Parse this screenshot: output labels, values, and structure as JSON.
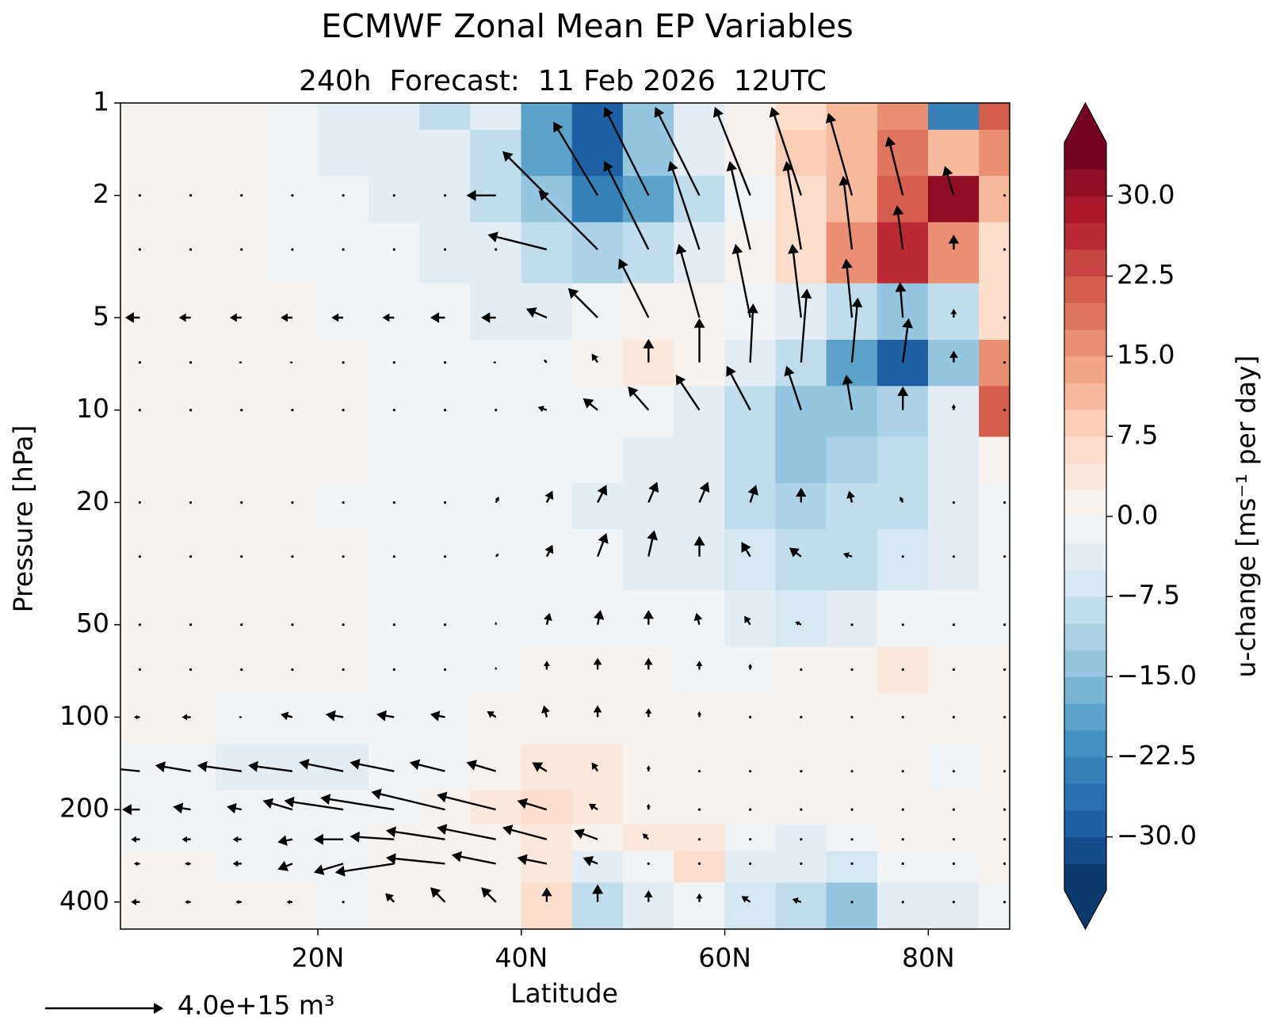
{
  "chart_data": {
    "type": "contour-quiver",
    "title": "ECMWF Zonal Mean EP Variables",
    "subtitle": "240h  Forecast:  11 Feb 2026  12UTC",
    "x_label": "Latitude",
    "y_label": "Pressure [hPa]",
    "xlim": [
      0.6,
      88
    ],
    "xticks": [
      {
        "value": 20,
        "label": "20N"
      },
      {
        "value": 40,
        "label": "40N"
      },
      {
        "value": 60,
        "label": "60N"
      },
      {
        "value": 80,
        "label": "80N"
      }
    ],
    "ylim": [
      1,
      490
    ],
    "y_log": true,
    "y_inverted": true,
    "yticks": [
      1,
      2,
      5,
      10,
      20,
      50,
      100,
      200,
      400
    ],
    "colormap": [
      "#053061",
      "#2166ac",
      "#4393c3",
      "#92c5de",
      "#d1e5f0",
      "#f7f7f7",
      "#fddbc7",
      "#f4a582",
      "#d6604d",
      "#b2182b",
      "#67001f"
    ],
    "colorbar": {
      "label": "u-change [ms⁻¹ per day]",
      "lim": [
        -35,
        35
      ],
      "bands": 28,
      "extend": "both",
      "ticks": [
        {
          "value": 30,
          "label": "30.0"
        },
        {
          "value": 22.5,
          "label": "22.5"
        },
        {
          "value": 15,
          "label": "15.0"
        },
        {
          "value": 7.5,
          "label": "7.5"
        },
        {
          "value": 0,
          "label": "0.0"
        },
        {
          "value": -7.5,
          "label": "−7.5"
        },
        {
          "value": -15,
          "label": "−15.0"
        },
        {
          "value": -22.5,
          "label": "−22.5"
        },
        {
          "value": -30,
          "label": "−30.0"
        }
      ]
    },
    "field": {
      "lats": [
        2.5,
        7.5,
        12.5,
        17.5,
        22.5,
        27.5,
        32.5,
        37.5,
        42.5,
        47.5,
        52.5,
        57.5,
        62.5,
        67.5,
        72.5,
        77.5,
        82.5,
        87.5
      ],
      "levels": [
        1,
        1.5,
        2,
        3,
        5,
        7,
        10,
        15,
        20,
        30,
        50,
        70,
        100,
        150,
        200,
        250,
        300,
        400
      ],
      "values": [
        [
          1,
          2,
          2,
          -1,
          -3,
          -3,
          -8,
          -5,
          -20,
          -30,
          -15,
          -5,
          0,
          5,
          12,
          15,
          -25,
          20
        ],
        [
          1,
          2,
          2,
          -2,
          -3,
          -4,
          -5,
          -10,
          -20,
          -28,
          -15,
          -5,
          2,
          8,
          12,
          18,
          10,
          15
        ],
        [
          0,
          1,
          1,
          -1,
          -2,
          -3,
          -5,
          -10,
          -15,
          -25,
          -20,
          -10,
          -2,
          5,
          12,
          22,
          30,
          10
        ],
        [
          0,
          0,
          0,
          -1,
          -2,
          -2,
          -3,
          -5,
          -8,
          -12,
          -10,
          -5,
          0,
          5,
          15,
          25,
          15,
          5
        ],
        [
          0,
          0,
          0,
          0,
          -1,
          -1,
          -2,
          -3,
          -3,
          -2,
          2,
          0,
          -2,
          -5,
          -10,
          -15,
          -10,
          5
        ],
        [
          0,
          0,
          0,
          1,
          0,
          -1,
          -1,
          -2,
          -2,
          0,
          3,
          2,
          -3,
          -10,
          -20,
          -28,
          -15,
          15
        ],
        [
          0,
          1,
          0,
          1,
          0,
          -1,
          -1,
          -2,
          -2,
          -2,
          -2,
          -3,
          -8,
          -15,
          -15,
          -12,
          -5,
          20
        ],
        [
          0,
          1,
          0,
          1,
          0,
          -1,
          -1,
          -2,
          -2,
          -2,
          -3,
          -5,
          -10,
          -15,
          -12,
          -10,
          -5,
          2
        ],
        [
          0,
          1,
          0,
          1,
          -1,
          -1,
          -2,
          -2,
          -2,
          -3,
          -4,
          -5,
          -8,
          -12,
          -10,
          -8,
          -4,
          -2
        ],
        [
          1,
          1,
          0,
          1,
          0,
          -1,
          -1,
          -2,
          -2,
          -2,
          -3,
          -4,
          -6,
          -10,
          -8,
          -6,
          -3,
          -2
        ],
        [
          1,
          1,
          0,
          1,
          0,
          -1,
          -1,
          -1,
          -1,
          -1,
          -2,
          -2,
          -4,
          -6,
          -4,
          -2,
          -1,
          -2
        ],
        [
          1,
          1,
          0,
          0,
          0,
          -1,
          -1,
          -1,
          0,
          0,
          0,
          -1,
          -1,
          0,
          2,
          3,
          1,
          2
        ],
        [
          0,
          0,
          -1,
          -2,
          -2,
          -1,
          -1,
          0,
          2,
          2,
          1,
          0,
          0,
          1,
          1,
          1,
          0,
          0
        ],
        [
          -1,
          -2,
          -3,
          -4,
          -3,
          -2,
          -1,
          0,
          3,
          4,
          2,
          1,
          0,
          0,
          0,
          0,
          -1,
          0
        ],
        [
          -1,
          -2,
          -2,
          -2,
          -2,
          -1,
          1,
          3,
          5,
          3,
          1,
          0,
          0,
          0,
          1,
          0,
          0,
          0
        ],
        [
          -1,
          -1,
          -1,
          -1,
          -1,
          0,
          1,
          2,
          4,
          2,
          4,
          3,
          -2,
          -3,
          -1,
          2,
          0,
          0
        ],
        [
          0,
          0,
          -1,
          -1,
          -1,
          0,
          1,
          2,
          3,
          -3,
          -2,
          6,
          -3,
          -5,
          -6,
          -2,
          -2,
          0
        ],
        [
          1,
          1,
          0,
          0,
          -1,
          0,
          1,
          2,
          7,
          -8,
          -5,
          -2,
          -7,
          -8,
          -15,
          -5,
          -3,
          -1
        ]
      ]
    },
    "quiver": {
      "lats": [
        2.5,
        7.5,
        12.5,
        17.5,
        22.5,
        27.5,
        32.5,
        37.5,
        42.5,
        47.5,
        52.5,
        57.5,
        62.5,
        67.5,
        72.5,
        77.5,
        82.5,
        87.5
      ],
      "levels": [
        2,
        3,
        5,
        7,
        10,
        20,
        30,
        50,
        70,
        100,
        150,
        200,
        250,
        300,
        400
      ],
      "u": [
        [
          0,
          0,
          0,
          0,
          0,
          0,
          0,
          -1000000000000000.0,
          -1500000000000000.0,
          -1500000000000000.0,
          -1500000000000000.0,
          -1500000000000000.0,
          -1200000000000000.0,
          -1000000000000000.0,
          -800000000000000.0,
          -500000000000000.0,
          -300000000000000.0,
          0
        ],
        [
          0,
          0,
          0,
          0,
          0,
          0,
          0,
          0,
          -2000000000000000.0,
          -2000000000000000.0,
          -1500000000000000.0,
          -1000000000000000.0,
          -700000000000000.0,
          -500000000000000.0,
          -300000000000000.0,
          -200000000000000.0,
          0,
          0
        ],
        [
          -500000000000000.0,
          -400000000000000.0,
          -400000000000000.0,
          -400000000000000.0,
          -400000000000000.0,
          -400000000000000.0,
          -500000000000000.0,
          -500000000000000.0,
          -700000000000000.0,
          -1000000000000000.0,
          -1000000000000000.0,
          -700000000000000.0,
          -500000000000000.0,
          -300000000000000.0,
          -200000000000000.0,
          -100000000000000.0,
          0,
          0
        ],
        [
          0,
          0,
          -100000000000000.0,
          -100000000000000.0,
          0,
          0,
          0,
          -100000000000000.0,
          -100000000000000.0,
          -200000000000000.0,
          0,
          0,
          100000000000000.0,
          200000000000000.0,
          200000000000000.0,
          200000000000000.0,
          0,
          0
        ],
        [
          0,
          0,
          0,
          0,
          0,
          0,
          0,
          0,
          -300000000000000.0,
          -500000000000000.0,
          -700000000000000.0,
          -800000000000000.0,
          -800000000000000.0,
          -500000000000000.0,
          -200000000000000.0,
          0,
          0,
          0
        ],
        [
          0,
          0,
          0,
          0,
          0,
          0,
          0,
          100000000000000.0,
          200000000000000.0,
          300000000000000.0,
          300000000000000.0,
          300000000000000.0,
          200000000000000.0,
          0,
          -100000000000000.0,
          -100000000000000.0,
          0,
          0
        ],
        [
          0,
          0,
          0,
          0,
          0,
          0,
          0,
          100000000000000.0,
          200000000000000.0,
          300000000000000.0,
          200000000000000.0,
          0,
          -300000000000000.0,
          -400000000000000.0,
          -300000000000000.0,
          0,
          0,
          0
        ],
        [
          0,
          0,
          0,
          0,
          0,
          0,
          0,
          0,
          100000000000000.0,
          100000000000000.0,
          0,
          -100000000000000.0,
          -200000000000000.0,
          -200000000000000.0,
          0,
          0,
          0,
          0
        ],
        [
          0,
          0,
          0,
          0,
          0,
          0,
          0,
          0,
          0,
          0,
          0,
          0,
          0,
          0,
          0,
          0,
          0,
          0
        ],
        [
          -200000000000000.0,
          -300000000000000.0,
          -100000000000000.0,
          -400000000000000.0,
          -600000000000000.0,
          -600000000000000.0,
          -500000000000000.0,
          -300000000000000.0,
          -100000000000000.0,
          0,
          0,
          0,
          0,
          0,
          0,
          0,
          0,
          0
        ],
        [
          -1000000000000000.0,
          -1200000000000000.0,
          -1500000000000000.0,
          -1500000000000000.0,
          -1500000000000000.0,
          -1500000000000000.0,
          -1200000000000000.0,
          -1000000000000000.0,
          -500000000000000.0,
          -200000000000000.0,
          0,
          0,
          0,
          0,
          0,
          0,
          0,
          0
        ],
        [
          -600000000000000.0,
          -600000000000000.0,
          -500000000000000.0,
          -1000000000000000.0,
          -2000000000000000.0,
          -2500000000000000.0,
          -2500000000000000.0,
          -2000000000000000.0,
          -1000000000000000.0,
          -300000000000000.0,
          0,
          0,
          0,
          0,
          0,
          0,
          0,
          0
        ],
        [
          -300000000000000.0,
          -300000000000000.0,
          -300000000000000.0,
          -500000000000000.0,
          -1000000000000000.0,
          -1500000000000000.0,
          -2000000000000000.0,
          -2000000000000000.0,
          -1500000000000000.0,
          -800000000000000.0,
          -200000000000000.0,
          0,
          0,
          0,
          0,
          0,
          0,
          0
        ],
        [
          -200000000000000.0,
          -200000000000000.0,
          -300000000000000.0,
          -500000000000000.0,
          -1000000000000000.0,
          -2000000000000000.0,
          -2000000000000000.0,
          -1500000000000000.0,
          -1000000000000000.0,
          -500000000000000.0,
          0,
          0,
          0,
          0,
          0,
          0,
          0,
          0
        ],
        [
          -300000000000000.0,
          -200000000000000.0,
          -200000000000000.0,
          -200000000000000.0,
          0,
          -300000000000000.0,
          -500000000000000.0,
          -500000000000000.0,
          0,
          0,
          0,
          0,
          -300000000000000.0,
          -300000000000000.0,
          0,
          0,
          0,
          0
        ]
      ],
      "v": [
        [
          0,
          0,
          0,
          0,
          0,
          0,
          0,
          0,
          1500000000000000.0,
          2500000000000000.0,
          3000000000000000.0,
          3000000000000000.0,
          3000000000000000.0,
          3000000000000000.0,
          2800000000000000.0,
          2000000000000000.0,
          1000000000000000.0,
          0
        ],
        [
          0,
          0,
          0,
          0,
          0,
          0,
          0,
          0,
          500000000000000.0,
          2000000000000000.0,
          3000000000000000.0,
          3000000000000000.0,
          3000000000000000.0,
          3000000000000000.0,
          2500000000000000.0,
          1500000000000000.0,
          500000000000000.0,
          0
        ],
        [
          0,
          0,
          0,
          0,
          0,
          0,
          0,
          0,
          300000000000000.0,
          1000000000000000.0,
          2000000000000000.0,
          2500000000000000.0,
          2500000000000000.0,
          2500000000000000.0,
          2000000000000000.0,
          1200000000000000.0,
          300000000000000.0,
          0
        ],
        [
          0,
          0,
          0,
          0,
          0,
          0,
          0,
          0,
          100000000000000.0,
          300000000000000.0,
          800000000000000.0,
          1500000000000000.0,
          2000000000000000.0,
          2500000000000000.0,
          2200000000000000.0,
          1500000000000000.0,
          400000000000000.0,
          0
        ],
        [
          0,
          0,
          0,
          0,
          0,
          0,
          0,
          0,
          100000000000000.0,
          400000000000000.0,
          800000000000000.0,
          1200000000000000.0,
          1500000000000000.0,
          1500000000000000.0,
          1200000000000000.0,
          800000000000000.0,
          200000000000000.0,
          0
        ],
        [
          0,
          0,
          0,
          0,
          0,
          0,
          0,
          200000000000000.0,
          400000000000000.0,
          600000000000000.0,
          700000000000000.0,
          700000000000000.0,
          600000000000000.0,
          500000000000000.0,
          400000000000000.0,
          200000000000000.0,
          0,
          0
        ],
        [
          0,
          0,
          0,
          0,
          0,
          0,
          0,
          100000000000000.0,
          400000000000000.0,
          800000000000000.0,
          900000000000000.0,
          700000000000000.0,
          500000000000000.0,
          300000000000000.0,
          100000000000000.0,
          0,
          0,
          0
        ],
        [
          0,
          0,
          0,
          0,
          0,
          0,
          0,
          100000000000000.0,
          400000000000000.0,
          500000000000000.0,
          500000000000000.0,
          400000000000000.0,
          300000000000000.0,
          100000000000000.0,
          0,
          0,
          0,
          0
        ],
        [
          0,
          0,
          0,
          0,
          0,
          0,
          0,
          100000000000000.0,
          300000000000000.0,
          400000000000000.0,
          400000000000000.0,
          300000000000000.0,
          200000000000000.0,
          0,
          0,
          0,
          0,
          0
        ],
        [
          0,
          0,
          0,
          100000000000000.0,
          100000000000000.0,
          100000000000000.0,
          100000000000000.0,
          200000000000000.0,
          400000000000000.0,
          400000000000000.0,
          300000000000000.0,
          200000000000000.0,
          0,
          0,
          0,
          0,
          0,
          0
        ],
        [
          100000000000000.0,
          200000000000000.0,
          200000000000000.0,
          200000000000000.0,
          300000000000000.0,
          300000000000000.0,
          300000000000000.0,
          300000000000000.0,
          300000000000000.0,
          300000000000000.0,
          200000000000000.0,
          0,
          0,
          0,
          0,
          0,
          0,
          0
        ],
        [
          0,
          100000000000000.0,
          100000000000000.0,
          300000000000000.0,
          300000000000000.0,
          400000000000000.0,
          600000000000000.0,
          500000000000000.0,
          300000000000000.0,
          200000000000000.0,
          200000000000000.0,
          0,
          0,
          0,
          0,
          0,
          0,
          0
        ],
        [
          0,
          0,
          0,
          -100000000000000.0,
          0,
          100000000000000.0,
          300000000000000.0,
          400000000000000.0,
          400000000000000.0,
          300000000000000.0,
          200000000000000.0,
          0,
          0,
          0,
          0,
          0,
          0,
          0
        ],
        [
          0,
          0,
          0,
          -200000000000000.0,
          -300000000000000.0,
          -300000000000000.0,
          200000000000000.0,
          300000000000000.0,
          200000000000000.0,
          200000000000000.0,
          0,
          0,
          0,
          0,
          0,
          0,
          0,
          0
        ],
        [
          0,
          0,
          0,
          0,
          0,
          300000000000000.0,
          500000000000000.0,
          500000000000000.0,
          500000000000000.0,
          600000000000000.0,
          400000000000000.0,
          300000000000000.0,
          200000000000000.0,
          100000000000000.0,
          0,
          0,
          0,
          0
        ]
      ],
      "key": {
        "value": 4000000000000000.0,
        "label": "4.0e+15 m³"
      },
      "color": "#000000"
    }
  }
}
